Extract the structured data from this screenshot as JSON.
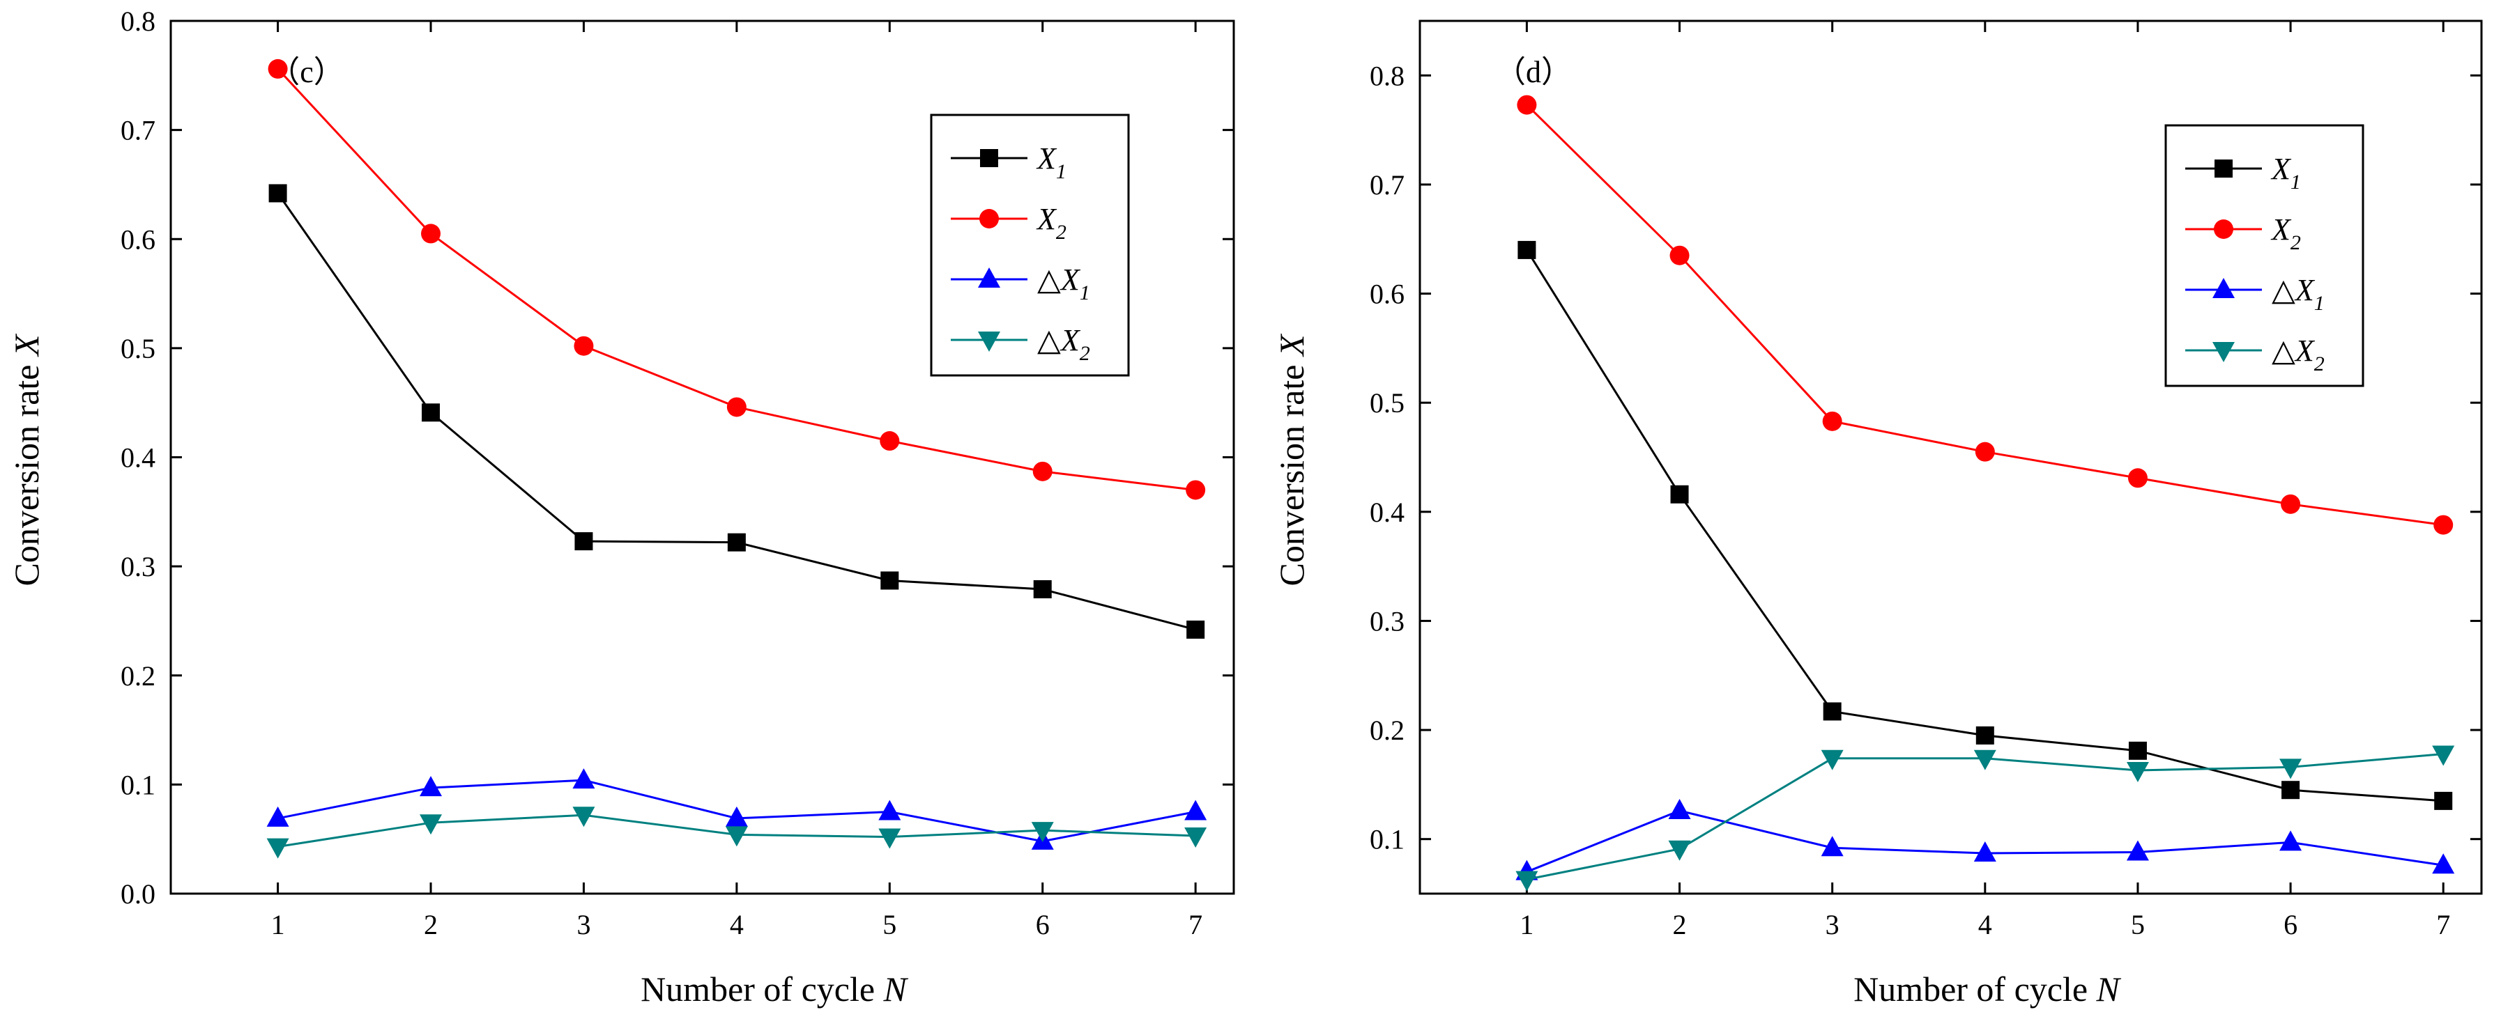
{
  "chart_data": [
    {
      "type": "line",
      "panel_label": "（c）",
      "xlabel": "Number of cycle",
      "xlabel_var": "N",
      "ylabel": "Conversion rate",
      "ylabel_var": "X",
      "x": [
        1,
        2,
        3,
        4,
        5,
        6,
        7
      ],
      "xlim": [
        0.3,
        7.25
      ],
      "ylim": [
        0.0,
        0.8
      ],
      "xticks": [
        "1",
        "2",
        "3",
        "4",
        "5",
        "6",
        "7"
      ],
      "yticks": [
        "0.0",
        "0.1",
        "0.2",
        "0.3",
        "0.4",
        "0.5",
        "0.6",
        "0.7",
        "0.8"
      ],
      "ytick_values": [
        0.0,
        0.1,
        0.2,
        0.3,
        0.4,
        0.5,
        0.6,
        0.7,
        0.8
      ],
      "grid": false,
      "legend_position": "top-right",
      "series": [
        {
          "name": "X1",
          "label_main": "X",
          "label_sub": "1",
          "label_prefix": "",
          "color": "#000000",
          "marker": "square",
          "values": [
            0.642,
            0.441,
            0.323,
            0.322,
            0.287,
            0.279,
            0.242
          ]
        },
        {
          "name": "X2",
          "label_main": "X",
          "label_sub": "2",
          "label_prefix": "",
          "color": "#ff0000",
          "marker": "circle",
          "values": [
            0.756,
            0.605,
            0.502,
            0.446,
            0.415,
            0.387,
            0.37
          ]
        },
        {
          "name": "△X1",
          "label_main": "X",
          "label_sub": "1",
          "label_prefix": "△",
          "color": "#0000ff",
          "marker": "triangle-up",
          "values": [
            0.069,
            0.097,
            0.104,
            0.069,
            0.075,
            0.048,
            0.075
          ]
        },
        {
          "name": "△X2",
          "label_main": "X",
          "label_sub": "2",
          "label_prefix": "△",
          "color": "#008080",
          "marker": "triangle-down",
          "values": [
            0.043,
            0.065,
            0.072,
            0.054,
            0.052,
            0.058,
            0.053
          ]
        }
      ]
    },
    {
      "type": "line",
      "panel_label": "（d）",
      "xlabel": "Number of cycle",
      "xlabel_var": "N",
      "ylabel": "Conversion rate",
      "ylabel_var": "X",
      "x": [
        1,
        2,
        3,
        4,
        5,
        6,
        7
      ],
      "xlim": [
        0.3,
        7.25
      ],
      "ylim": [
        0.05,
        0.85
      ],
      "xticks": [
        "1",
        "2",
        "3",
        "4",
        "5",
        "6",
        "7"
      ],
      "yticks": [
        "0.1",
        "0.2",
        "0.3",
        "0.4",
        "0.5",
        "0.6",
        "0.7",
        "0.8"
      ],
      "ytick_values": [
        0.1,
        0.2,
        0.3,
        0.4,
        0.5,
        0.6,
        0.7,
        0.8
      ],
      "grid": false,
      "legend_position": "top-right",
      "series": [
        {
          "name": "X1",
          "label_main": "X",
          "label_sub": "1",
          "label_prefix": "",
          "color": "#000000",
          "marker": "square",
          "values": [
            0.64,
            0.416,
            0.217,
            0.195,
            0.181,
            0.145,
            0.135
          ]
        },
        {
          "name": "X2",
          "label_main": "X",
          "label_sub": "2",
          "label_prefix": "",
          "color": "#ff0000",
          "marker": "circle",
          "values": [
            0.773,
            0.635,
            0.483,
            0.455,
            0.431,
            0.407,
            0.388
          ]
        },
        {
          "name": "△X1",
          "label_main": "X",
          "label_sub": "1",
          "label_prefix": "△",
          "color": "#0000ff",
          "marker": "triangle-up",
          "values": [
            0.07,
            0.126,
            0.092,
            0.087,
            0.088,
            0.097,
            0.076
          ]
        },
        {
          "name": "△X2",
          "label_main": "X",
          "label_sub": "2",
          "label_prefix": "△",
          "color": "#008080",
          "marker": "triangle-down",
          "values": [
            0.063,
            0.091,
            0.174,
            0.174,
            0.163,
            0.166,
            0.178
          ]
        }
      ]
    }
  ]
}
